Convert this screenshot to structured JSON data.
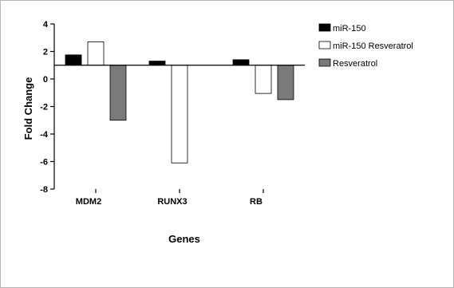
{
  "chart_data": {
    "type": "bar",
    "title": "",
    "xlabel": "Genes",
    "ylabel": "Fold Change",
    "categories": [
      "MDM2",
      "RUNX3",
      "RB"
    ],
    "series": [
      {
        "name": "miR-150",
        "values": [
          1.75,
          1.3,
          1.4
        ],
        "color": "#000000"
      },
      {
        "name": "miR-150 Resveratrol",
        "values": [
          2.7,
          -6.1,
          -1.05
        ],
        "color": "#ffffff"
      },
      {
        "name": "Resveratrol",
        "values": [
          -3.0,
          0,
          -1.5
        ],
        "color": "#7a7a7a"
      }
    ],
    "ylim": [
      -8,
      4
    ],
    "yticks": [
      "-8",
      "-6",
      "-4",
      "-2",
      "0",
      "2",
      "4"
    ],
    "baseline": 1,
    "grid": false,
    "legend": "right"
  }
}
